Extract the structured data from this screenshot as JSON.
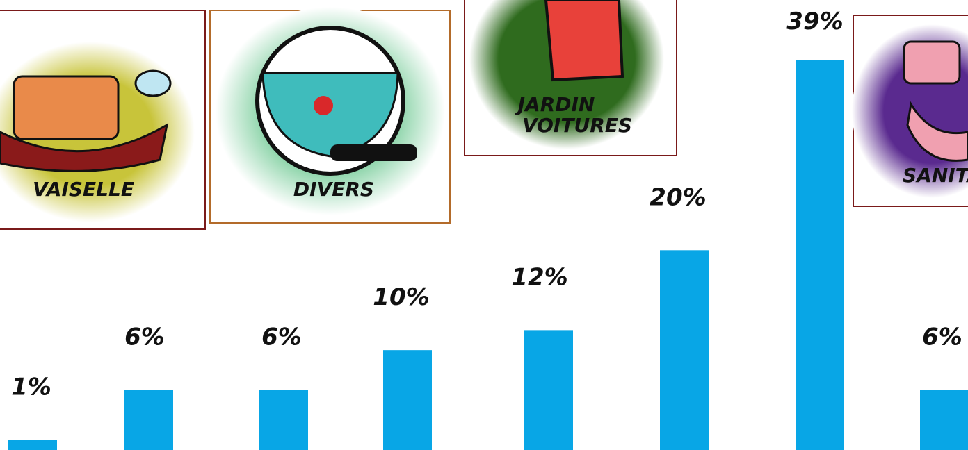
{
  "chart_data": {
    "type": "bar",
    "categories": [
      null,
      null,
      null,
      null,
      null,
      null,
      null,
      null
    ],
    "values": [
      1,
      6,
      6,
      10,
      12,
      20,
      39,
      6
    ],
    "value_labels": [
      "1%",
      "6%",
      "6%",
      "10%",
      "12%",
      "20%",
      "39%",
      "6%"
    ],
    "color": "#08a6e6",
    "annotations": [
      "VAISELLE",
      "DIVERS",
      "JARDIN",
      "VOITURES",
      "SANITA"
    ]
  }
}
